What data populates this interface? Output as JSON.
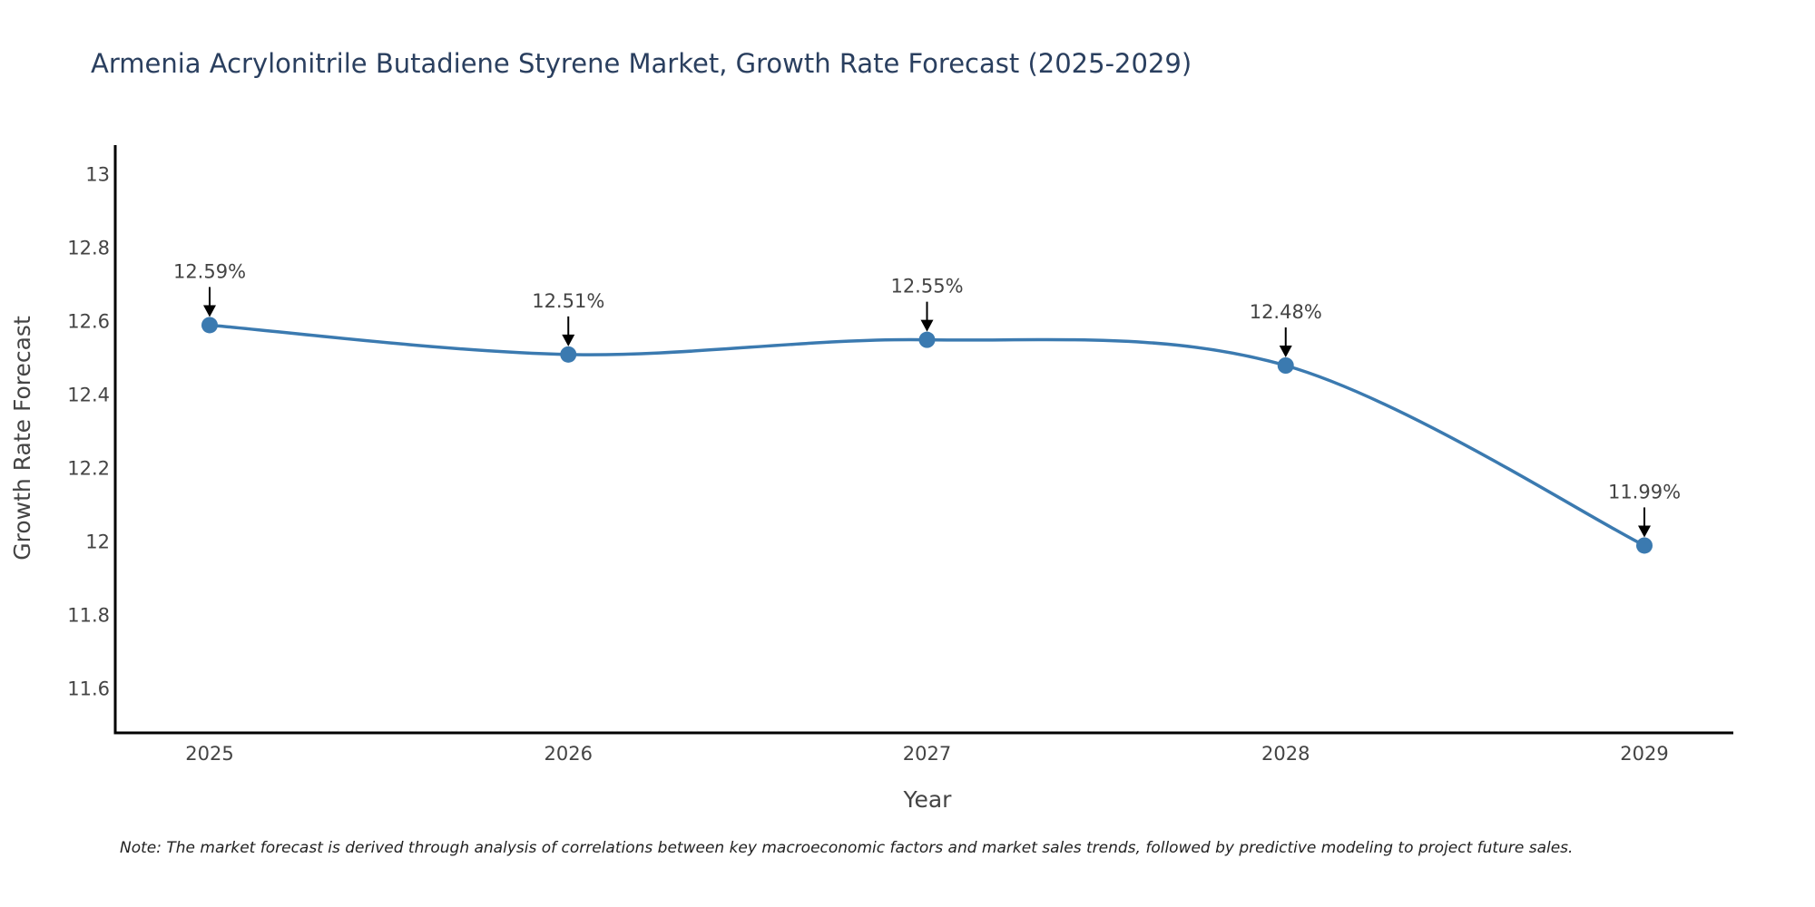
{
  "chart_data": {
    "type": "line",
    "title": "Armenia Acrylonitrile Butadiene Styrene Market, Growth Rate Forecast (2025-2029)",
    "xlabel": "Year",
    "ylabel": "Growth Rate Forecast",
    "categories": [
      "2025",
      "2026",
      "2027",
      "2028",
      "2029"
    ],
    "series": [
      {
        "name": "Growth Rate Forecast",
        "values": [
          12.59,
          12.51,
          12.55,
          12.48,
          11.99
        ]
      }
    ],
    "data_labels": [
      "12.59%",
      "12.51%",
      "12.55%",
      "12.48%",
      "11.99%"
    ],
    "ylim": [
      11.48,
      13.08
    ],
    "yticks": [
      11.6,
      11.8,
      12,
      12.2,
      12.4,
      12.6,
      12.8,
      13
    ],
    "ytick_labels": [
      "11.6",
      "11.8",
      "12",
      "12.2",
      "12.4",
      "12.6",
      "12.8",
      "13"
    ],
    "grid": false,
    "line_color": "#3b7ab0",
    "marker_color": "#3b7ab0",
    "note": "Note: The market forecast is derived through analysis of correlations between key macroeconomic factors and market sales trends, followed by predictive modeling to project future sales."
  }
}
